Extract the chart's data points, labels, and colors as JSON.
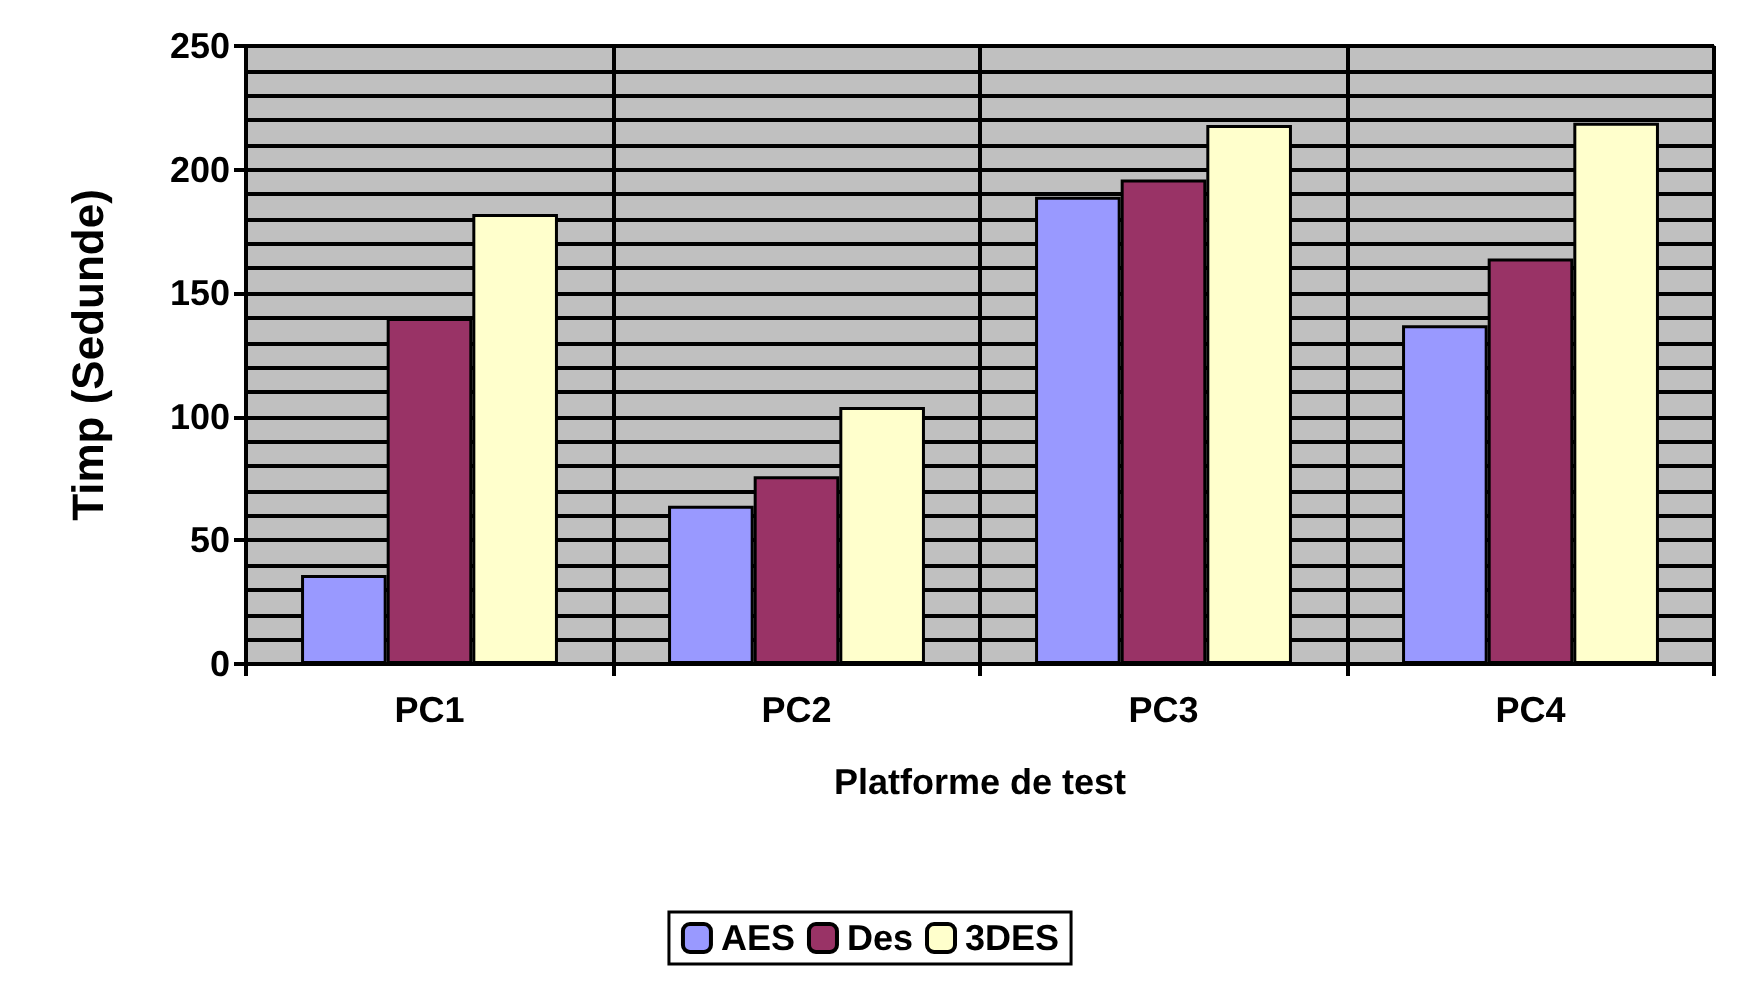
{
  "chart_data": {
    "type": "bar",
    "xlabel": "Platforme de test",
    "ylabel": "Timp (Sedunde)",
    "categories": [
      "PC1",
      "PC2",
      "PC3",
      "PC4"
    ],
    "series": [
      {
        "name": "AES",
        "color": "#9999ff",
        "values": [
          36,
          64,
          189,
          137
        ]
      },
      {
        "name": "Des",
        "color": "#993366",
        "values": [
          140,
          76,
          196,
          164
        ]
      },
      {
        "name": "3DES",
        "color": "#ffffcc",
        "values": [
          182,
          104,
          218,
          219
        ]
      }
    ],
    "ylim": [
      0,
      250
    ],
    "yticks": [
      0,
      50,
      100,
      150,
      200,
      250
    ],
    "grid": true,
    "legend": "bottom"
  }
}
